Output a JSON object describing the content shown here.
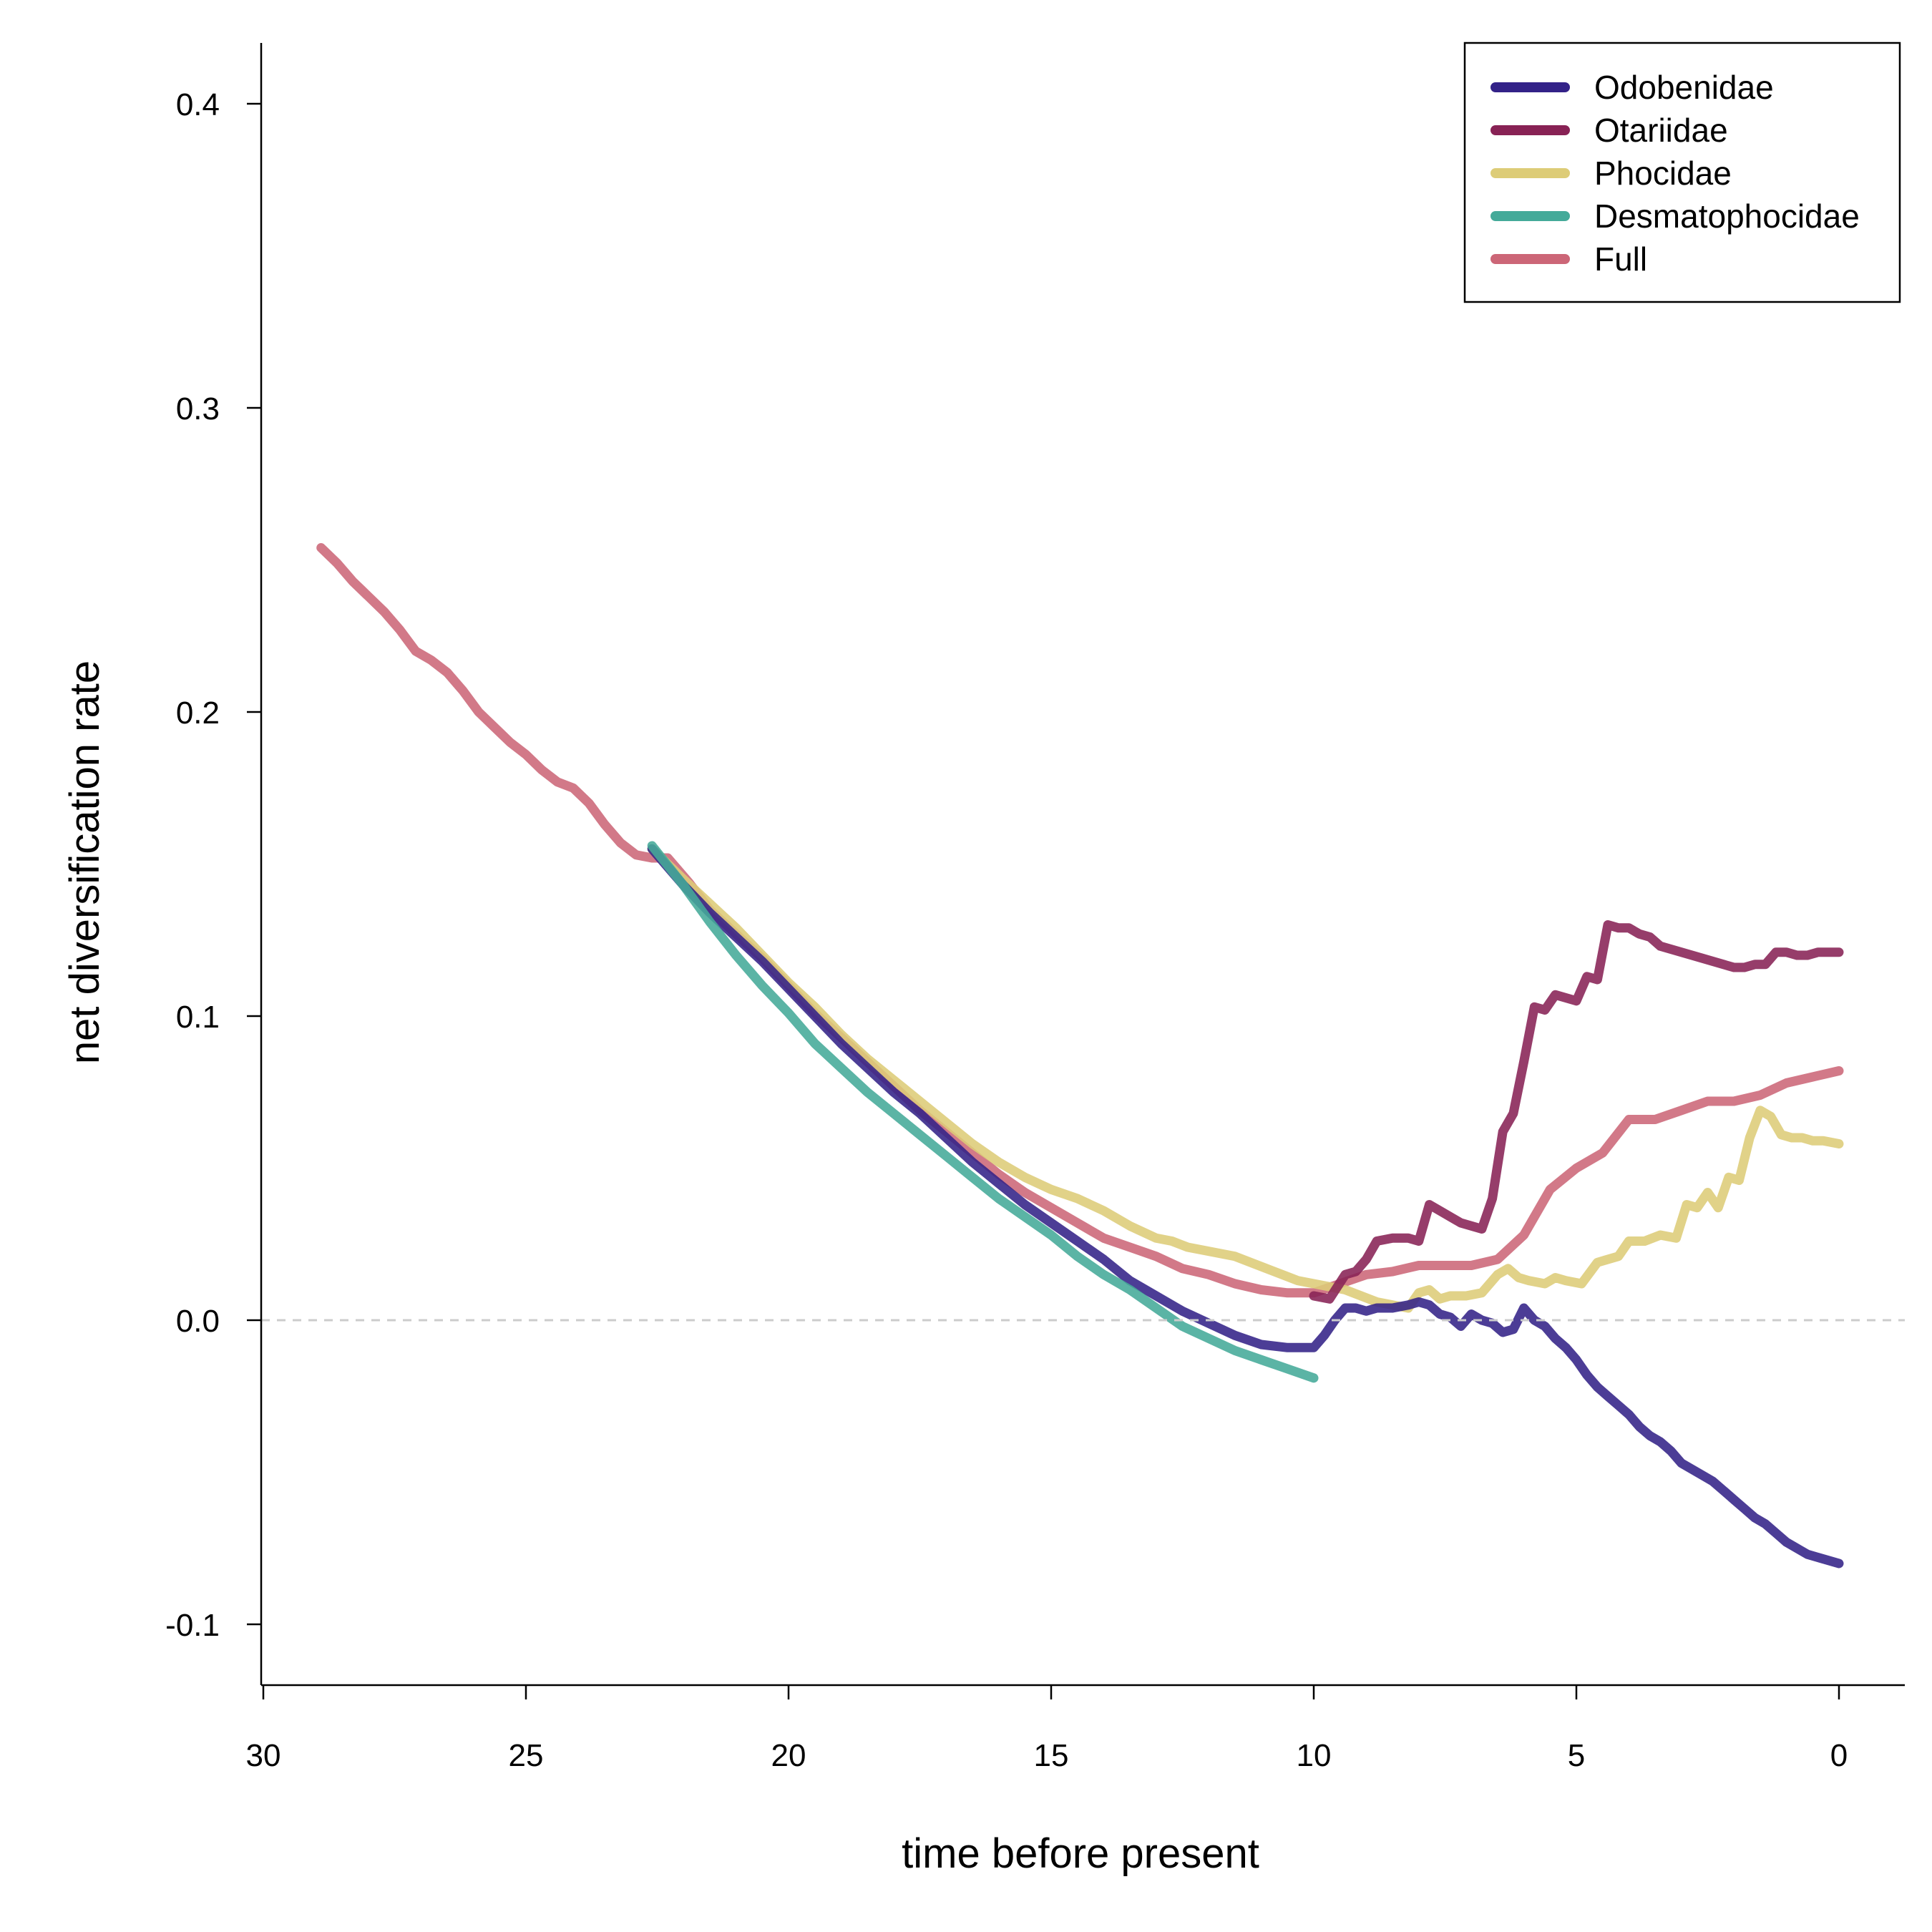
{
  "chart_data": {
    "type": "line",
    "title": "",
    "xlabel": "time before present",
    "ylabel": "net diversification rate",
    "xlim": [
      30,
      0
    ],
    "ylim": [
      -0.12,
      0.42
    ],
    "x_reversed": true,
    "x_ticks": [
      "30",
      "25",
      "20",
      "15",
      "10",
      "5",
      "0"
    ],
    "x_tick_values": [
      30,
      25,
      20,
      15,
      10,
      5,
      0
    ],
    "y_ticks": [
      "-0.1",
      "0.0",
      "0.1",
      "0.2",
      "0.3",
      "0.4"
    ],
    "y_tick_values": [
      -0.1,
      0.0,
      0.1,
      0.2,
      0.3,
      0.4
    ],
    "reference_line": {
      "y": 0.0,
      "style": "dashed",
      "color": "#cccccc"
    },
    "grid": false,
    "legend_position": "top-right",
    "legend_entries": [
      "Odobenidae",
      "Otariidae",
      "Phocidae",
      "Desmatophocidae",
      "Full"
    ],
    "series": [
      {
        "name": "Full",
        "color": "#cc6677",
        "x": [
          28.9,
          28.6,
          28.3,
          28.0,
          27.7,
          27.4,
          27.1,
          26.8,
          26.5,
          26.2,
          25.9,
          25.6,
          25.3,
          25.0,
          24.7,
          24.4,
          24.1,
          23.8,
          23.5,
          23.2,
          22.9,
          22.6,
          22.3,
          21.9,
          21.5,
          21.0,
          20.5,
          20.0,
          19.5,
          19.0,
          18.5,
          18.0,
          17.5,
          17.0,
          16.5,
          16.0,
          15.5,
          15.0,
          14.5,
          14.0,
          13.5,
          13.0,
          12.5,
          12.0,
          11.5,
          11.0,
          10.5,
          10.0,
          9.5,
          9.0,
          8.5,
          8.0,
          7.5,
          7.0,
          6.5,
          6.0,
          5.5,
          5.0,
          4.5,
          4.0,
          3.5,
          3.0,
          2.5,
          2.0,
          1.5,
          1.0,
          0.5,
          0.0
        ],
        "y": [
          0.254,
          0.249,
          0.243,
          0.238,
          0.233,
          0.227,
          0.22,
          0.217,
          0.213,
          0.207,
          0.2,
          0.195,
          0.19,
          0.186,
          0.181,
          0.177,
          0.175,
          0.17,
          0.163,
          0.157,
          0.153,
          0.152,
          0.152,
          0.144,
          0.135,
          0.127,
          0.119,
          0.11,
          0.101,
          0.093,
          0.085,
          0.077,
          0.069,
          0.062,
          0.055,
          0.048,
          0.042,
          0.037,
          0.032,
          0.027,
          0.024,
          0.021,
          0.017,
          0.015,
          0.012,
          0.01,
          0.009,
          0.009,
          0.012,
          0.015,
          0.016,
          0.018,
          0.018,
          0.018,
          0.02,
          0.028,
          0.043,
          0.05,
          0.055,
          0.066,
          0.066,
          0.069,
          0.072,
          0.072,
          0.074,
          0.078,
          0.08,
          0.082
        ]
      },
      {
        "name": "Phocidae",
        "color": "#ddcc77",
        "x": [
          22.6,
          22.0,
          21.5,
          21.0,
          20.5,
          20.0,
          19.5,
          19.0,
          18.5,
          18.0,
          17.5,
          17.0,
          16.5,
          16.0,
          15.5,
          15.0,
          14.5,
          14.0,
          13.5,
          13.0,
          12.7,
          12.4,
          12.1,
          11.8,
          11.5,
          11.2,
          10.9,
          10.6,
          10.3,
          10.0,
          9.7,
          9.4,
          9.1,
          8.8,
          8.5,
          8.2,
          8.0,
          7.8,
          7.6,
          7.4,
          7.1,
          6.8,
          6.5,
          6.3,
          6.1,
          5.9,
          5.6,
          5.4,
          5.2,
          4.9,
          4.6,
          4.4,
          4.2,
          4.0,
          3.7,
          3.4,
          3.1,
          2.9,
          2.7,
          2.5,
          2.3,
          2.1,
          1.9,
          1.7,
          1.5,
          1.3,
          1.1,
          0.9,
          0.7,
          0.5,
          0.3,
          0.0
        ],
        "y": [
          0.155,
          0.145,
          0.137,
          0.129,
          0.12,
          0.111,
          0.103,
          0.094,
          0.086,
          0.079,
          0.072,
          0.065,
          0.058,
          0.052,
          0.047,
          0.043,
          0.04,
          0.036,
          0.031,
          0.027,
          0.026,
          0.024,
          0.023,
          0.022,
          0.021,
          0.019,
          0.017,
          0.015,
          0.013,
          0.012,
          0.011,
          0.01,
          0.008,
          0.006,
          0.005,
          0.004,
          0.009,
          0.01,
          0.007,
          0.008,
          0.008,
          0.009,
          0.015,
          0.017,
          0.014,
          0.013,
          0.012,
          0.014,
          0.013,
          0.012,
          0.019,
          0.02,
          0.021,
          0.026,
          0.026,
          0.028,
          0.027,
          0.038,
          0.037,
          0.042,
          0.037,
          0.047,
          0.046,
          0.06,
          0.069,
          0.067,
          0.061,
          0.06,
          0.06,
          0.059,
          0.059,
          0.058
        ]
      },
      {
        "name": "Otariidae",
        "color": "#882255",
        "x": [
          10.0,
          9.7,
          9.4,
          9.2,
          9.0,
          8.8,
          8.5,
          8.2,
          8.0,
          7.8,
          7.6,
          7.4,
          7.2,
          7.0,
          6.8,
          6.6,
          6.4,
          6.2,
          6.0,
          5.8,
          5.6,
          5.4,
          5.2,
          5.0,
          4.8,
          4.6,
          4.4,
          4.2,
          4.0,
          3.8,
          3.6,
          3.4,
          3.2,
          3.0,
          2.8,
          2.6,
          2.4,
          2.2,
          2.0,
          1.8,
          1.6,
          1.4,
          1.2,
          1.0,
          0.8,
          0.6,
          0.4,
          0.2,
          0.0
        ],
        "y": [
          0.008,
          0.007,
          0.015,
          0.016,
          0.02,
          0.026,
          0.027,
          0.027,
          0.026,
          0.038,
          0.036,
          0.034,
          0.032,
          0.031,
          0.03,
          0.04,
          0.062,
          0.068,
          0.085,
          0.103,
          0.102,
          0.107,
          0.106,
          0.105,
          0.113,
          0.112,
          0.13,
          0.129,
          0.129,
          0.127,
          0.126,
          0.123,
          0.122,
          0.121,
          0.12,
          0.119,
          0.118,
          0.117,
          0.116,
          0.116,
          0.117,
          0.117,
          0.121,
          0.121,
          0.12,
          0.12,
          0.121,
          0.121,
          0.121
        ]
      },
      {
        "name": "Odobenidae",
        "color": "#332288",
        "x": [
          22.6,
          22.0,
          21.5,
          21.0,
          20.5,
          20.0,
          19.5,
          19.0,
          18.5,
          18.0,
          17.5,
          17.0,
          16.5,
          16.0,
          15.5,
          15.0,
          14.5,
          14.0,
          13.5,
          13.0,
          12.5,
          12.0,
          11.5,
          11.0,
          10.5,
          10.0,
          9.8,
          9.6,
          9.4,
          9.2,
          9.0,
          8.8,
          8.5,
          8.2,
          8.0,
          7.8,
          7.6,
          7.4,
          7.2,
          7.0,
          6.8,
          6.6,
          6.4,
          6.2,
          6.0,
          5.8,
          5.6,
          5.4,
          5.2,
          5.0,
          4.8,
          4.6,
          4.4,
          4.2,
          4.0,
          3.8,
          3.6,
          3.4,
          3.2,
          3.0,
          2.8,
          2.6,
          2.4,
          2.2,
          2.0,
          1.8,
          1.6,
          1.4,
          1.2,
          1.0,
          0.8,
          0.6,
          0.4,
          0.2,
          0.0
        ],
        "y": [
          0.155,
          0.143,
          0.134,
          0.126,
          0.118,
          0.109,
          0.1,
          0.091,
          0.083,
          0.075,
          0.068,
          0.06,
          0.052,
          0.045,
          0.038,
          0.032,
          0.026,
          0.02,
          0.013,
          0.008,
          0.003,
          -0.001,
          -0.005,
          -0.008,
          -0.009,
          -0.009,
          -0.005,
          0.0,
          0.004,
          0.004,
          0.003,
          0.004,
          0.004,
          0.005,
          0.006,
          0.005,
          0.002,
          0.001,
          -0.002,
          0.002,
          0.0,
          -0.001,
          -0.004,
          -0.003,
          0.004,
          0.0,
          -0.002,
          -0.006,
          -0.009,
          -0.013,
          -0.018,
          -0.022,
          -0.025,
          -0.028,
          -0.031,
          -0.035,
          -0.038,
          -0.04,
          -0.043,
          -0.047,
          -0.049,
          -0.051,
          -0.053,
          -0.056,
          -0.059,
          -0.062,
          -0.065,
          -0.067,
          -0.07,
          -0.073,
          -0.075,
          -0.077,
          -0.078,
          -0.079,
          -0.08
        ]
      },
      {
        "name": "Desmatophocidae",
        "color": "#44aa99",
        "x": [
          22.6,
          22.0,
          21.5,
          21.0,
          20.5,
          20.0,
          19.5,
          19.0,
          18.5,
          18.0,
          17.5,
          17.0,
          16.5,
          16.0,
          15.5,
          15.0,
          14.5,
          14.0,
          13.5,
          13.0,
          12.5,
          12.0,
          11.5,
          11.0,
          10.5,
          10.0
        ],
        "y": [
          0.156,
          0.143,
          0.131,
          0.12,
          0.11,
          0.101,
          0.091,
          0.083,
          0.075,
          0.068,
          0.061,
          0.054,
          0.047,
          0.04,
          0.034,
          0.028,
          0.021,
          0.015,
          0.01,
          0.004,
          -0.002,
          -0.006,
          -0.01,
          -0.013,
          -0.016,
          -0.019
        ]
      }
    ]
  }
}
